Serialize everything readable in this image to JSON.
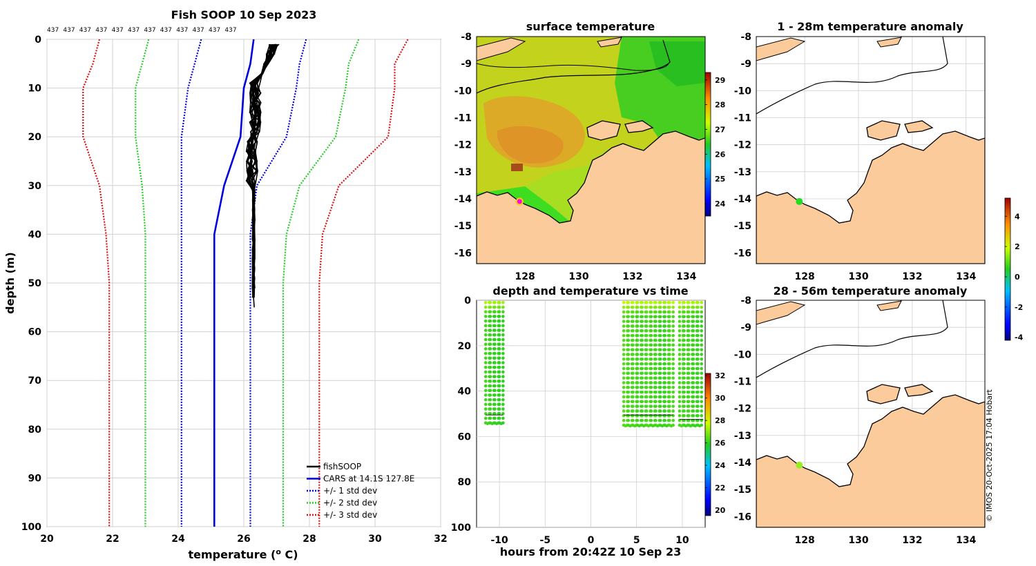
{
  "figure": {
    "main_title": "Fish SOOP 10 Sep 2023",
    "stamp": "© IMOS 20-Oct-2025 17:04 Hobart"
  },
  "colors": {
    "land": "#fbcb9b",
    "fish": "#000000",
    "cars": "#0000dd",
    "std1": "#0000dd",
    "std2": "#22cc22",
    "std3": "#dd1111",
    "grid": "#d0d0d0"
  },
  "chart_data": [
    {
      "id": "profile",
      "type": "line",
      "title": "Fish SOOP 10 Sep 2023",
      "xlabel": "temperature (",
      "xlabel_sup": "o",
      "xlabel_tail": " C)",
      "ylabel": "depth (m)",
      "xlim": [
        20,
        32
      ],
      "ylim": [
        100,
        0
      ],
      "xticks": [
        20,
        22,
        24,
        26,
        28,
        30,
        32
      ],
      "yticks": [
        0,
        10,
        20,
        30,
        40,
        50,
        60,
        70,
        80,
        90,
        100
      ],
      "top_counts": [
        "437",
        "437",
        "437",
        "437",
        "437",
        "437",
        "437",
        "437",
        "437",
        "437",
        "437",
        "437"
      ],
      "depth": [
        0,
        5,
        10,
        20,
        30,
        40,
        50,
        60,
        70,
        80,
        90,
        100
      ],
      "cars": [
        26.3,
        26.2,
        26.0,
        25.9,
        25.4,
        25.1,
        25.1,
        25.1,
        25.1,
        25.1,
        25.1,
        25.1
      ],
      "std1_lo": [
        24.7,
        24.5,
        24.3,
        24.1,
        24.1,
        24.1,
        24.1,
        24.1,
        24.1,
        24.1,
        24.1,
        24.1
      ],
      "std1_hi": [
        27.9,
        27.7,
        27.6,
        27.3,
        26.4,
        26.2,
        26.2,
        26.2,
        26.2,
        26.2,
        26.2,
        26.2
      ],
      "std2_lo": [
        23.1,
        22.9,
        22.7,
        22.7,
        22.9,
        23.0,
        23.0,
        23.0,
        23.0,
        23.0,
        23.0,
        23.0
      ],
      "std2_hi": [
        29.5,
        29.2,
        29.1,
        28.8,
        27.7,
        27.3,
        27.2,
        27.2,
        27.2,
        27.2,
        27.2,
        27.2
      ],
      "std3_lo": [
        21.6,
        21.4,
        21.1,
        21.1,
        21.6,
        21.8,
        21.9,
        21.9,
        21.9,
        21.9,
        21.9,
        21.9
      ],
      "std3_hi": [
        31.0,
        30.6,
        30.6,
        30.4,
        28.9,
        28.4,
        28.3,
        28.3,
        28.3,
        28.3,
        28.3,
        28.3
      ],
      "legend": [
        "fishSOOP",
        "CARS at 14.1S 127.8E",
        "+/- 1 std dev",
        "+/- 2 std dev",
        "+/- 3 std dev"
      ],
      "legend_position": "bottom-right"
    },
    {
      "id": "sst_map",
      "type": "heatmap",
      "title": "surface temperature",
      "xlim": [
        126.2,
        134.7
      ],
      "ylim": [
        -16.4,
        -8
      ],
      "xticks": [
        128,
        130,
        132,
        134
      ],
      "yticks": [
        -8,
        -9,
        -10,
        -11,
        -12,
        -13,
        -14,
        -15,
        -16
      ],
      "colorbar": {
        "min": 23.5,
        "max": 29.3,
        "ticks": [
          24,
          25,
          26,
          27,
          28,
          29
        ]
      },
      "marker": {
        "lon": 127.8,
        "lat": -14.1
      }
    },
    {
      "id": "anom_1_28",
      "type": "scatter",
      "title": "1 - 28m temperature anomaly",
      "xlim": [
        126.2,
        134.7
      ],
      "ylim": [
        -16.4,
        -8
      ],
      "xticks": [
        128,
        130,
        132,
        134
      ],
      "yticks": [
        -8,
        -9,
        -10,
        -11,
        -12,
        -13,
        -14,
        -15,
        -16
      ],
      "point": {
        "lon": 127.8,
        "lat": -14.1,
        "anomaly": 0.2
      }
    },
    {
      "id": "anom_28_56",
      "type": "scatter",
      "title": "28 - 56m temperature anomaly",
      "xlim": [
        126.2,
        134.7
      ],
      "ylim": [
        -16.4,
        -8
      ],
      "xticks": [
        128,
        130,
        132,
        134
      ],
      "yticks": [
        -8,
        -9,
        -10,
        -11,
        -12,
        -13,
        -14,
        -15,
        -16
      ],
      "point": {
        "lon": 127.8,
        "lat": -14.1,
        "anomaly": 0.6
      }
    },
    {
      "id": "anom_colorbar",
      "type": "heatmap",
      "min": -4.2,
      "max": 5.2,
      "ticks": [
        -4,
        -2,
        0,
        2,
        4
      ]
    },
    {
      "id": "depth_time",
      "type": "scatter",
      "title": "depth and temperature vs time",
      "xlabel": "hours from 20:42Z 10 Sep 23",
      "xlim": [
        -12.5,
        12.5
      ],
      "ylim": [
        100,
        0
      ],
      "xticks": [
        -10,
        -5,
        0,
        5,
        10
      ],
      "yticks": [
        0,
        20,
        40,
        60,
        80,
        100
      ],
      "casts": [
        {
          "t0": -11.5,
          "t1": -11.1,
          "d_max": 54,
          "temp": 26.2
        },
        {
          "t0": -11.0,
          "t1": -10.6,
          "d_max": 54,
          "temp": 26.1
        },
        {
          "t0": -10.5,
          "t1": -10.1,
          "d_max": 54,
          "temp": 26.0
        },
        {
          "t0": -10.0,
          "t1": -9.6,
          "d_max": 54,
          "temp": 26.0
        },
        {
          "t0": 3.6,
          "t1": 4.0,
          "d_max": 55,
          "temp": 26.4
        },
        {
          "t0": 4.1,
          "t1": 4.5,
          "d_max": 55,
          "temp": 26.3
        },
        {
          "t0": 4.6,
          "t1": 5.0,
          "d_max": 55,
          "temp": 26.3
        },
        {
          "t0": 5.1,
          "t1": 5.5,
          "d_max": 55,
          "temp": 26.2
        },
        {
          "t0": 5.6,
          "t1": 6.0,
          "d_max": 55,
          "temp": 26.2
        },
        {
          "t0": 6.1,
          "t1": 6.5,
          "d_max": 55,
          "temp": 26.3
        },
        {
          "t0": 6.6,
          "t1": 7.0,
          "d_max": 55,
          "temp": 26.2
        },
        {
          "t0": 7.1,
          "t1": 7.5,
          "d_max": 55,
          "temp": 26.2
        },
        {
          "t0": 7.6,
          "t1": 8.0,
          "d_max": 55,
          "temp": 26.1
        },
        {
          "t0": 8.1,
          "t1": 8.5,
          "d_max": 55,
          "temp": 26.1
        },
        {
          "t0": 8.6,
          "t1": 9.0,
          "d_max": 55,
          "temp": 26.3
        },
        {
          "t0": 9.7,
          "t1": 10.1,
          "d_max": 55,
          "temp": 26.3
        },
        {
          "t0": 10.2,
          "t1": 10.6,
          "d_max": 55,
          "temp": 26.2
        },
        {
          "t0": 10.7,
          "t1": 11.1,
          "d_max": 55,
          "temp": 26.2
        },
        {
          "t0": 11.2,
          "t1": 11.6,
          "d_max": 55,
          "temp": 26.1
        },
        {
          "t0": 11.7,
          "t1": 12.1,
          "d_max": 55,
          "temp": 26.1
        }
      ],
      "bottom_lines": [
        {
          "t0": -11.5,
          "t1": -9.6,
          "depth": 50.5
        },
        {
          "t0": 3.6,
          "t1": 9.0,
          "depth": 50.5
        },
        {
          "t0": 9.7,
          "t1": 12.3,
          "depth": 52.5
        }
      ],
      "colorbar": {
        "min": 19.5,
        "max": 32.2,
        "ticks": [
          20,
          22,
          24,
          26,
          28,
          30,
          32
        ]
      }
    }
  ]
}
